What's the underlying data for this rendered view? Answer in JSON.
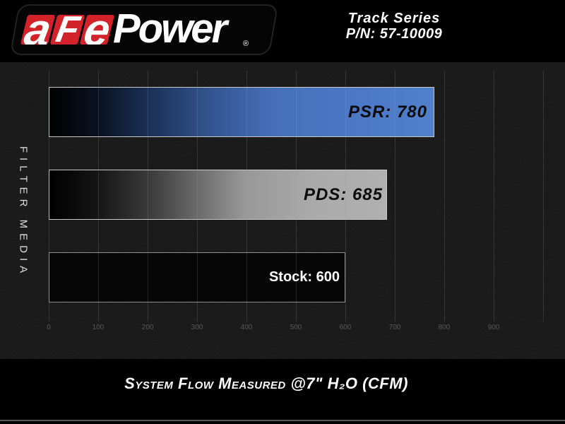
{
  "colors": {
    "background": "#000000",
    "chart_background": "#151515",
    "accent_red": "#d2232a",
    "bar_blue": "#4b77c4",
    "bar_gray": "#ababab",
    "bar_black": "#060606",
    "tick_label_gray": "#585858"
  },
  "header": {
    "logo": {
      "letters": [
        "a",
        "F",
        "e"
      ],
      "word": "Power",
      "registered": "®"
    },
    "product_line": "Track Series",
    "part_number": "P/N: 57-10009"
  },
  "chart_data": {
    "type": "bar",
    "orientation": "horizontal",
    "title": "",
    "ylabel": "FILTER MEDIA",
    "categories": [
      "PSR",
      "PDS",
      "Stock"
    ],
    "values": [
      780,
      685,
      600
    ],
    "bar_labels": [
      "PSR: 780",
      "PDS: 685",
      "Stock: 600"
    ],
    "bar_styles": [
      "black-to-blue-gradient",
      "black-to-gray-gradient",
      "solid-black"
    ],
    "xlim": [
      0,
      1000
    ],
    "x_ticks": [
      "0",
      "100",
      "200",
      "300",
      "400",
      "500",
      "600",
      "700",
      "800",
      "900"
    ],
    "grid": "vertical",
    "legend_position": "none",
    "units": "CFM"
  },
  "footer": {
    "caption": "System Flow Measured @7\" H₂O (CFM)"
  }
}
